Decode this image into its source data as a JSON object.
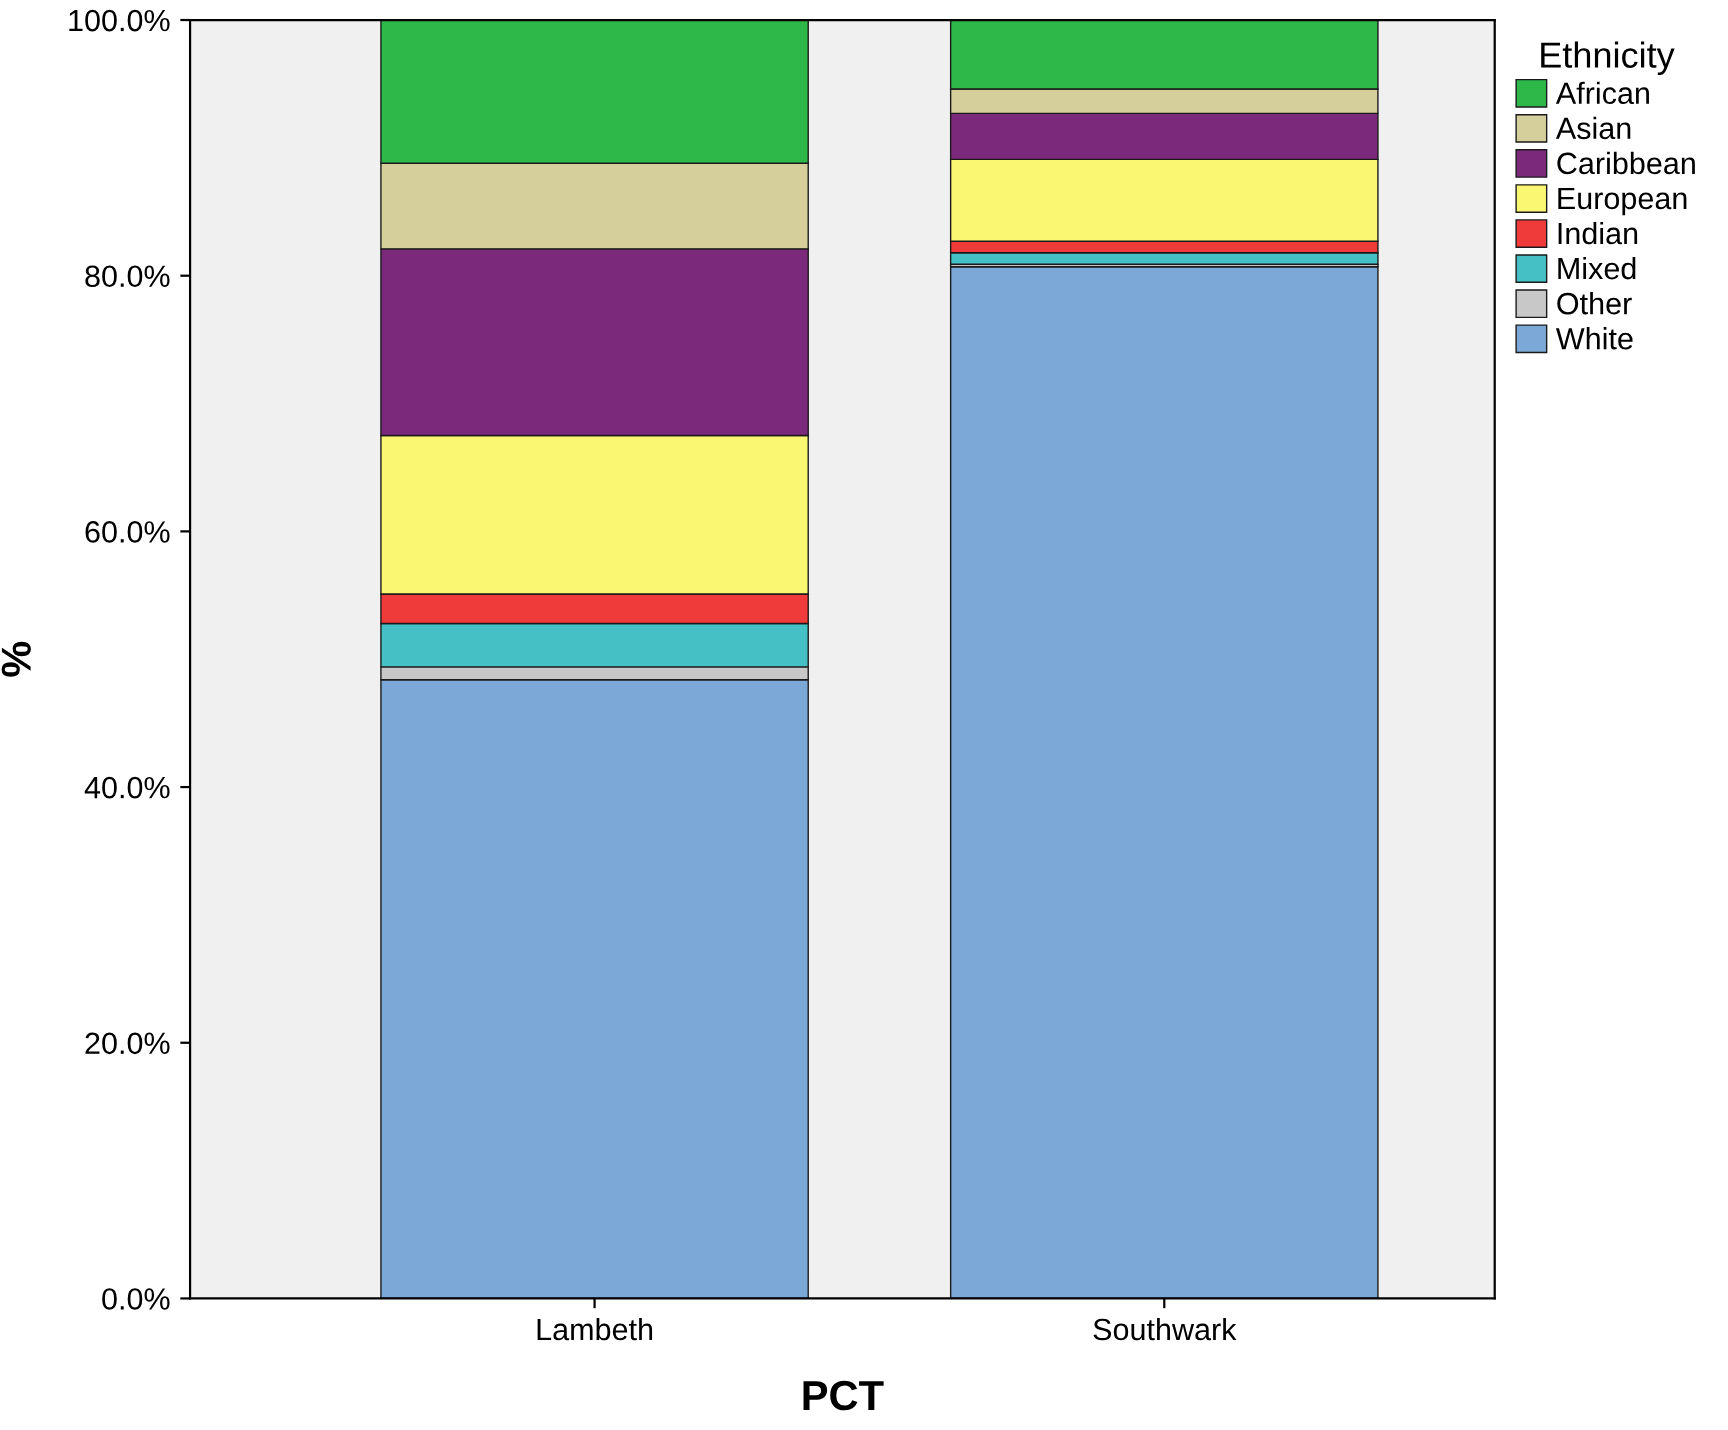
{
  "chart_data": {
    "type": "bar",
    "stacked": true,
    "xlabel": "PCT",
    "ylabel": "%",
    "legend_title": "Ethnicity",
    "legend": "top right",
    "grid": false,
    "categories": [
      "Lambeth",
      "Southwark"
    ],
    "ylim": [
      0,
      100
    ],
    "yticks": [
      {
        "value": 0,
        "label": "0.0%"
      },
      {
        "value": 20,
        "label": "20.0%"
      },
      {
        "value": 40,
        "label": "40.0%"
      },
      {
        "value": 60,
        "label": "60.0%"
      },
      {
        "value": 80,
        "label": "80.0%"
      },
      {
        "value": 100,
        "label": "100.0%"
      }
    ],
    "series": [
      {
        "name": "White",
        "color": "#7ba8d6",
        "values": [
          48.4,
          80.7
        ]
      },
      {
        "name": "Other",
        "color": "#c8c8c8",
        "values": [
          1.0,
          0.2
        ]
      },
      {
        "name": "Mixed",
        "color": "#45c1c5",
        "values": [
          3.4,
          0.9
        ]
      },
      {
        "name": "Indian",
        "color": "#f03b3b",
        "values": [
          2.3,
          0.9
        ]
      },
      {
        "name": "European",
        "color": "#faf773",
        "values": [
          12.4,
          6.4
        ]
      },
      {
        "name": "Caribbean",
        "color": "#7b2a7b",
        "values": [
          14.6,
          3.6
        ]
      },
      {
        "name": "Asian",
        "color": "#d4cf9b",
        "values": [
          6.7,
          1.9
        ]
      },
      {
        "name": "African",
        "color": "#2fb84a",
        "values": [
          11.2,
          5.4
        ]
      }
    ]
  }
}
